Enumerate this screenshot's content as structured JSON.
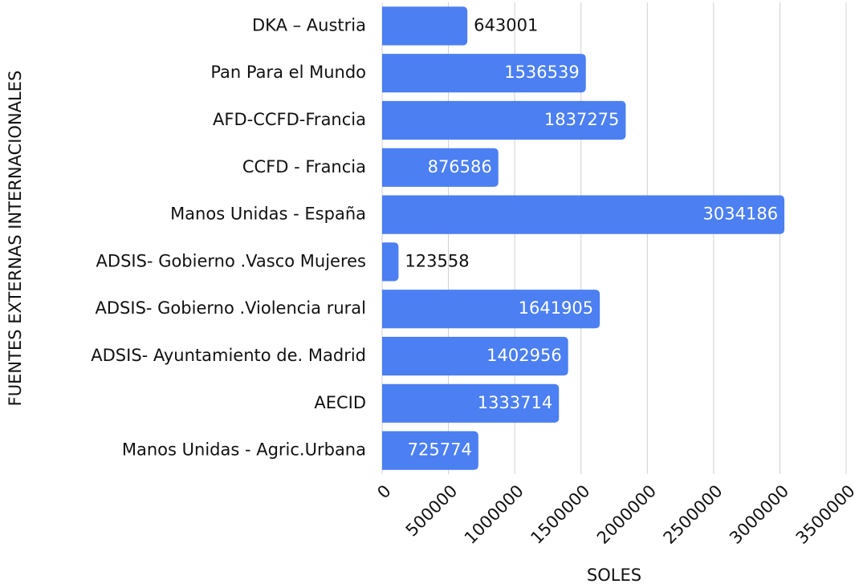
{
  "chart_data": {
    "type": "bar",
    "orientation": "horizontal",
    "x_label": "SOLES",
    "y_label": "FUENTES EXTERNAS INTERNACIONALES",
    "categories": [
      "DKA – Austria",
      "Pan Para el Mundo",
      "AFD-CCFD-Francia",
      "CCFD - Francia",
      "Manos Unidas - España",
      "ADSIS- Gobierno .Vasco Mujeres",
      "ADSIS- Gobierno .Violencia rural",
      "ADSIS- Ayuntamiento de. Madrid",
      "AECID",
      "Manos Unidas - Agric.Urbana"
    ],
    "values": [
      643001,
      1536539,
      1837275,
      876586,
      3034186,
      123558,
      1641905,
      1402956,
      1333714,
      725774
    ],
    "color": "#4b7ff2",
    "xlim": [
      0,
      3500000
    ],
    "xticks": [
      0,
      500000,
      1000000,
      1500000,
      2000000,
      2500000,
      3000000,
      3500000
    ],
    "grid": true
  }
}
